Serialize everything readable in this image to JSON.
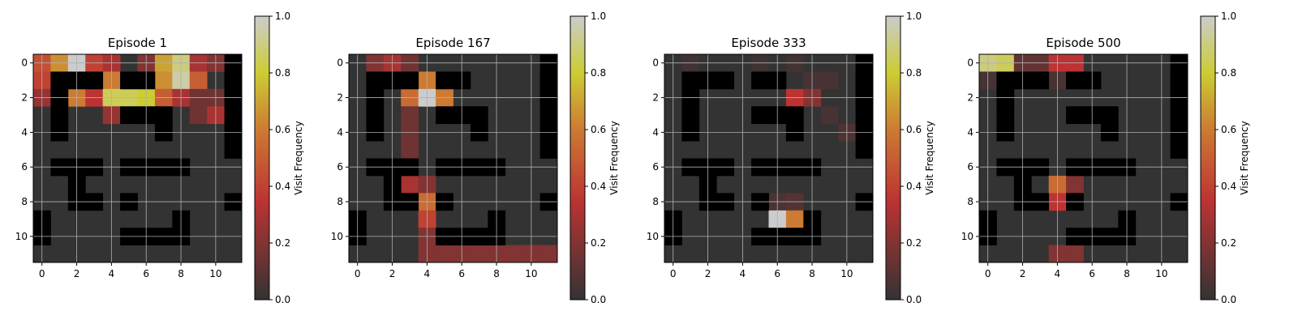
{
  "chart_data": {
    "type": "heatmap",
    "colormap": {
      "stops": [
        {
          "v": 0.0,
          "color": "#000000"
        },
        {
          "v": 0.35,
          "color": "#e60000"
        },
        {
          "v": 0.6,
          "color": "#ff7700"
        },
        {
          "v": 0.8,
          "color": "#ffff00"
        },
        {
          "v": 1.0,
          "color": "#ffffff"
        }
      ],
      "overlay_alpha": 0.6,
      "wall_color": "#000000",
      "bg_color": "#808080"
    },
    "colorbar": {
      "label": "Visit Frequency",
      "range": [
        0,
        1
      ],
      "ticks": [
        "0.0",
        "0.2",
        "0.4",
        "0.6",
        "0.8",
        "1.0"
      ]
    },
    "axes": {
      "xlim": [
        -0.5,
        11.5
      ],
      "ylim": [
        11.5,
        -0.5
      ],
      "xticks": [
        0,
        2,
        4,
        6,
        8,
        10
      ],
      "yticks": [
        0,
        2,
        4,
        6,
        8,
        10
      ],
      "grid": true
    },
    "maze": {
      "rows": 12,
      "cols": 12,
      "walls": [
        [
          1,
          11
        ],
        [
          2,
          11
        ],
        [
          3,
          11
        ],
        [
          4,
          11
        ],
        [
          5,
          11
        ],
        [
          1,
          1
        ],
        [
          1,
          2
        ],
        [
          1,
          3
        ],
        [
          2,
          1
        ],
        [
          3,
          1
        ],
        [
          4,
          1
        ],
        [
          1,
          5
        ],
        [
          1,
          6
        ],
        [
          3,
          5
        ],
        [
          3,
          6
        ],
        [
          3,
          7
        ],
        [
          4,
          7
        ],
        [
          6,
          1
        ],
        [
          6,
          2
        ],
        [
          6,
          3
        ],
        [
          7,
          2
        ],
        [
          8,
          2
        ],
        [
          8,
          3
        ],
        [
          6,
          5
        ],
        [
          6,
          6
        ],
        [
          6,
          7
        ],
        [
          6,
          8
        ],
        [
          8,
          5
        ],
        [
          9,
          0
        ],
        [
          10,
          0
        ],
        [
          10,
          5
        ],
        [
          10,
          6
        ],
        [
          10,
          7
        ],
        [
          10,
          8
        ],
        [
          9,
          8
        ],
        [
          8,
          11
        ]
      ]
    },
    "panels": [
      {
        "title": "Episode 1",
        "walls_extra": [
          [
            0,
            11
          ],
          [
            1,
            11
          ],
          [
            2,
            11
          ]
        ],
        "visits": [
          [
            0,
            0,
            0.45
          ],
          [
            0,
            1,
            0.65
          ],
          [
            0,
            2,
            1.0
          ],
          [
            0,
            3,
            0.4
          ],
          [
            0,
            4,
            0.3
          ],
          [
            0,
            6,
            0.2
          ],
          [
            0,
            7,
            0.7
          ],
          [
            0,
            8,
            0.9
          ],
          [
            0,
            9,
            0.3
          ],
          [
            0,
            10,
            0.2
          ],
          [
            1,
            0,
            0.4
          ],
          [
            1,
            4,
            0.6
          ],
          [
            1,
            7,
            0.65
          ],
          [
            1,
            8,
            0.95
          ],
          [
            1,
            9,
            0.5
          ],
          [
            2,
            0,
            0.25
          ],
          [
            2,
            2,
            0.6
          ],
          [
            2,
            3,
            0.35
          ],
          [
            2,
            4,
            0.85
          ],
          [
            2,
            5,
            0.85
          ],
          [
            2,
            6,
            0.8
          ],
          [
            2,
            7,
            0.5
          ],
          [
            2,
            8,
            0.3
          ],
          [
            2,
            9,
            0.15
          ],
          [
            2,
            10,
            0.15
          ],
          [
            3,
            4,
            0.25
          ],
          [
            3,
            9,
            0.15
          ],
          [
            3,
            10,
            0.3
          ]
        ]
      },
      {
        "title": "Episode 167",
        "walls_extra": [
          [
            0,
            11
          ],
          [
            1,
            11
          ],
          [
            2,
            11
          ]
        ],
        "visits": [
          [
            0,
            1,
            0.2
          ],
          [
            0,
            2,
            0.3
          ],
          [
            0,
            3,
            0.15
          ],
          [
            1,
            3,
            0.35
          ],
          [
            1,
            4,
            0.6
          ],
          [
            2,
            3,
            0.55
          ],
          [
            2,
            4,
            1.0
          ],
          [
            2,
            5,
            0.6
          ],
          [
            3,
            3,
            0.15
          ],
          [
            4,
            3,
            0.15
          ],
          [
            5,
            3,
            0.15
          ],
          [
            6,
            3,
            0.15
          ],
          [
            7,
            3,
            0.3
          ],
          [
            7,
            4,
            0.2
          ],
          [
            8,
            4,
            0.55
          ],
          [
            9,
            4,
            0.4
          ],
          [
            10,
            4,
            0.2
          ],
          [
            11,
            4,
            0.2
          ],
          [
            11,
            5,
            0.2
          ],
          [
            11,
            6,
            0.2
          ],
          [
            11,
            7,
            0.2
          ],
          [
            11,
            8,
            0.2
          ],
          [
            11,
            9,
            0.2
          ],
          [
            11,
            10,
            0.2
          ],
          [
            11,
            11,
            0.2
          ]
        ]
      },
      {
        "title": "Episode 333",
        "walls_extra": [
          [
            0,
            11
          ],
          [
            1,
            11
          ],
          [
            2,
            11
          ]
        ],
        "visits": [
          [
            0,
            1,
            0.03
          ],
          [
            0,
            5,
            0.03
          ],
          [
            0,
            7,
            0.04
          ],
          [
            1,
            8,
            0.05
          ],
          [
            1,
            9,
            0.05
          ],
          [
            2,
            7,
            0.35
          ],
          [
            2,
            8,
            0.2
          ],
          [
            3,
            9,
            0.05
          ],
          [
            4,
            10,
            0.07
          ],
          [
            8,
            6,
            0.06
          ],
          [
            8,
            7,
            0.08
          ],
          [
            9,
            6,
            1.0
          ],
          [
            9,
            7,
            0.6
          ]
        ]
      },
      {
        "title": "Episode 500",
        "walls_extra": [
          [
            0,
            11
          ],
          [
            1,
            11
          ],
          [
            2,
            11
          ]
        ],
        "visits": [
          [
            0,
            0,
            0.9
          ],
          [
            0,
            1,
            0.85
          ],
          [
            0,
            2,
            0.12
          ],
          [
            0,
            3,
            0.12
          ],
          [
            0,
            4,
            0.35
          ],
          [
            0,
            5,
            0.35
          ],
          [
            1,
            0,
            0.05
          ],
          [
            1,
            4,
            0.05
          ],
          [
            7,
            4,
            0.55
          ],
          [
            7,
            5,
            0.2
          ],
          [
            8,
            4,
            0.35
          ],
          [
            11,
            4,
            0.2
          ],
          [
            11,
            5,
            0.2
          ]
        ]
      }
    ]
  }
}
